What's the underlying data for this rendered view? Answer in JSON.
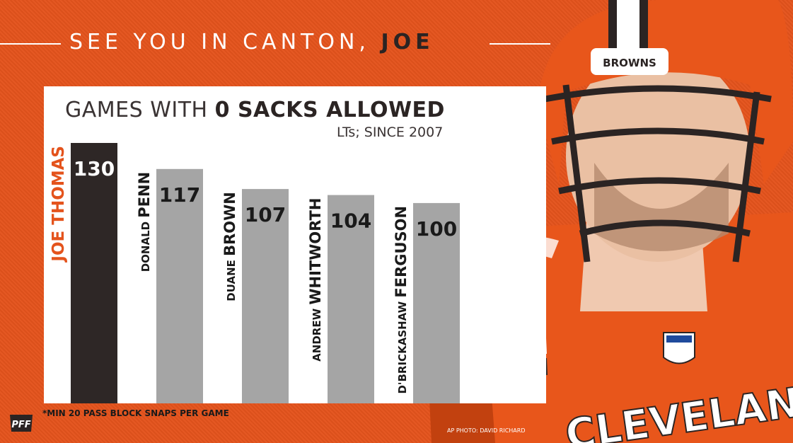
{
  "header": {
    "prefix": "SEE YOU IN CANTON, ",
    "emphasis": "JOE"
  },
  "chart_data": {
    "type": "bar",
    "title_prefix": "GAMES WITH ",
    "title_bold": "0 SACKS ALLOWED",
    "subtitle": "LTs; SINCE 2007",
    "categories": [
      {
        "first": "JOE",
        "last": "THOMAS"
      },
      {
        "first": "DONALD",
        "last": "PENN"
      },
      {
        "first": "DUANE",
        "last": "BROWN"
      },
      {
        "first": "ANDREW",
        "last": "WHITWORTH"
      },
      {
        "first": "D'BRICKASHAW",
        "last": "FERGUSON"
      }
    ],
    "values": [
      130,
      117,
      107,
      104,
      100
    ],
    "highlight_index": 0,
    "colors": {
      "highlight_bar": "#2e2726",
      "bar": "#a5a5a5",
      "highlight_label": "#e4531c",
      "label": "#1a1a1a",
      "value_text": "#1a1a1a",
      "highlight_value_text": "#ffffff"
    }
  },
  "footnote": "*MIN 20 PASS BLOCK SNAPS PER GAME",
  "logo": "PFF",
  "credit": "AP PHOTO: DAVID RICHARD",
  "jersey_text": "CLEVELAND",
  "helmet_text": "BROWNS",
  "colors": {
    "background": "#e4531c",
    "panel": "#ffffff"
  }
}
